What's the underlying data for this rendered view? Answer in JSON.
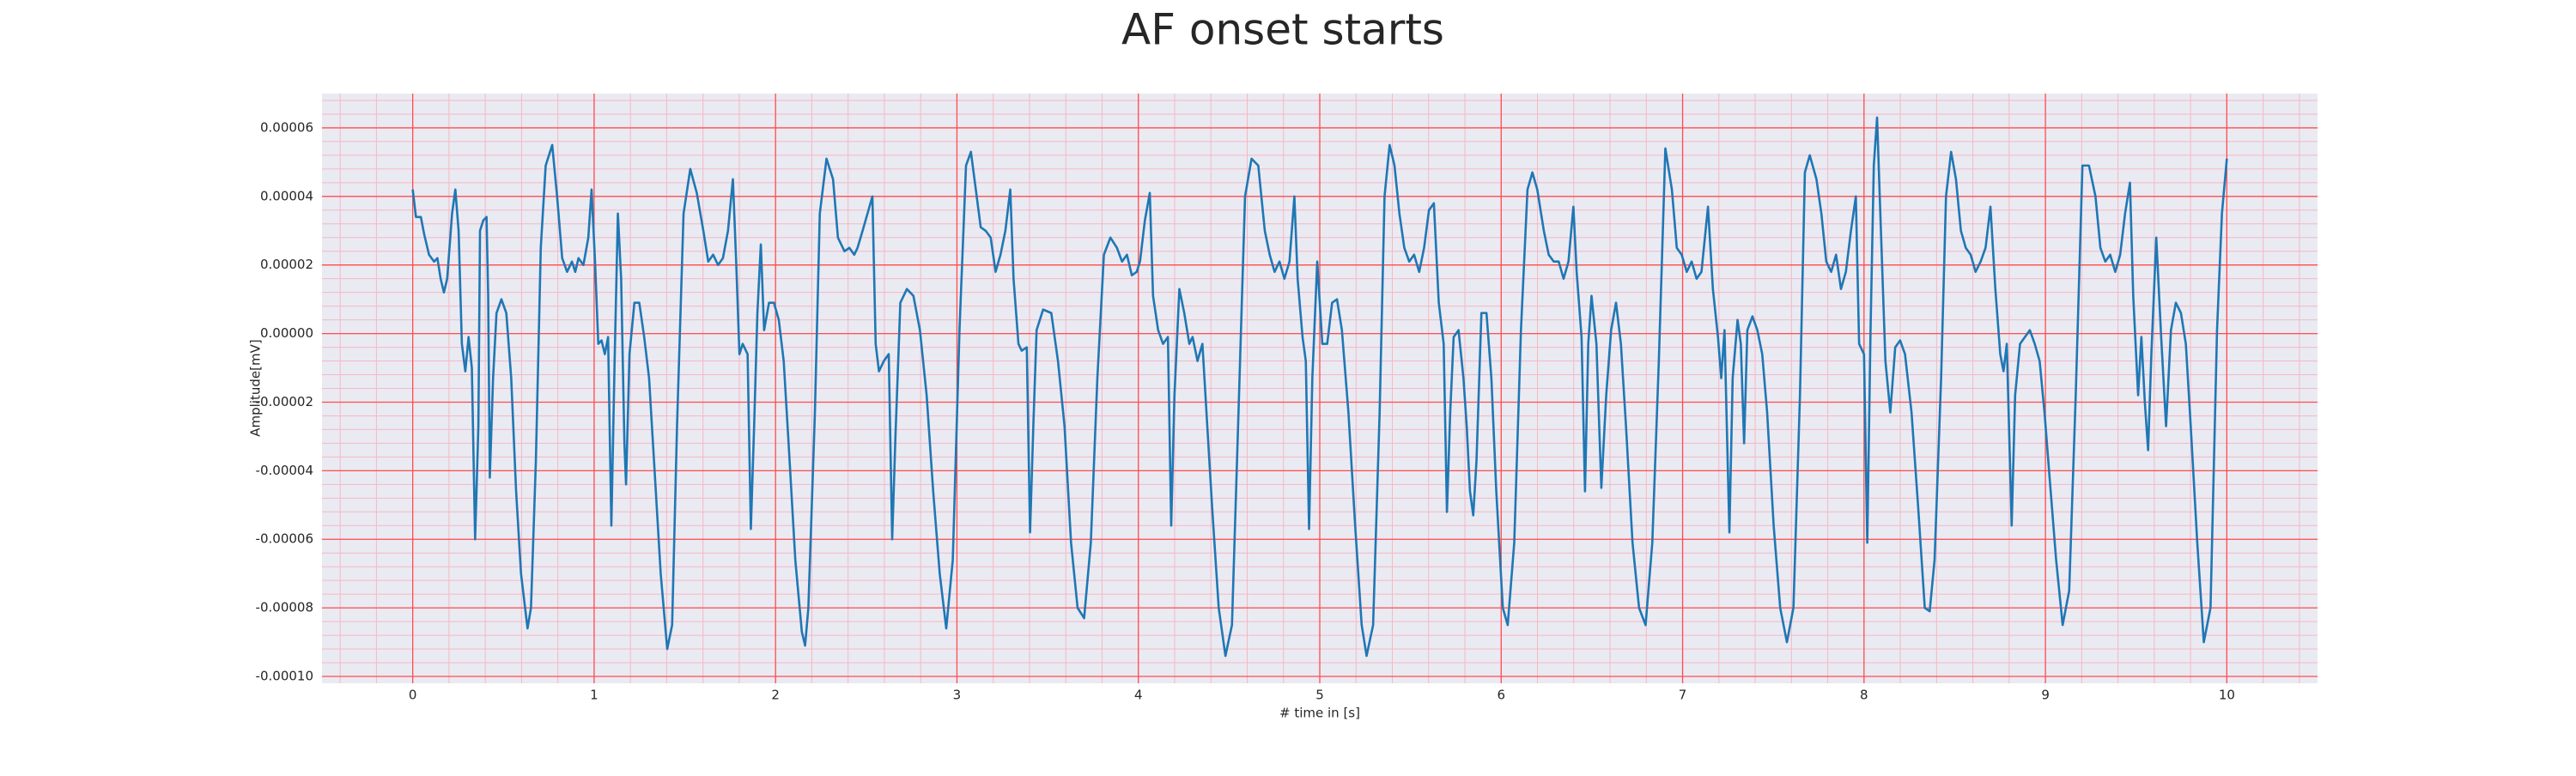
{
  "chart_data": {
    "type": "line",
    "title": "AF onset starts",
    "x_label": "# time in [s]",
    "y_label": "Amplitude[mV]",
    "color": "#1f77b4",
    "grid": true,
    "major_grid_color": "#ff4d4d",
    "minor_grid_color": "#f4b8c4",
    "background": "#eaeaf2",
    "xlim": [
      -0.5,
      10.5
    ],
    "xticks": [
      0,
      1,
      2,
      3,
      4,
      5,
      6,
      7,
      8,
      9,
      10
    ],
    "ylim": [
      -0.000102,
      7e-05
    ],
    "yticks": [
      {
        "value": -0.0001,
        "label": "-0.00010"
      },
      -8e-05,
      -6e-05,
      -4e-05,
      -2e-05,
      {
        "value": 0,
        "label": "0.00000"
      },
      2e-05,
      4e-05,
      6e-05
    ],
    "x": [
      0,
      0.018,
      0.045,
      0.063,
      0.09,
      0.118,
      0.136,
      0.154,
      0.172,
      0.19,
      0.217,
      0.235,
      0.253,
      0.271,
      0.29,
      0.308,
      0.326,
      0.344,
      0.362,
      0.371,
      0.389,
      0.407,
      0.416,
      0.425,
      0.443,
      0.462,
      0.489,
      0.516,
      0.543,
      0.57,
      0.597,
      0.633,
      0.652,
      0.679,
      0.706,
      0.733,
      0.769,
      0.796,
      0.824,
      0.851,
      0.878,
      0.896,
      0.914,
      0.941,
      0.968,
      0.986,
      1.005,
      1.023,
      1.041,
      1.059,
      1.077,
      1.095,
      1.113,
      1.131,
      1.149,
      1.167,
      1.176,
      1.195,
      1.222,
      1.249,
      1.276,
      1.303,
      1.33,
      1.367,
      1.403,
      1.43,
      1.457,
      1.493,
      1.53,
      1.566,
      1.602,
      1.629,
      1.656,
      1.683,
      1.71,
      1.738,
      1.765,
      1.783,
      1.801,
      1.819,
      1.846,
      1.864,
      1.882,
      1.9,
      1.919,
      1.937,
      1.964,
      1.991,
      2.018,
      2.045,
      2.072,
      2.109,
      2.145,
      2.163,
      2.181,
      2.217,
      2.244,
      2.281,
      2.317,
      2.344,
      2.38,
      2.407,
      2.434,
      2.452,
      2.48,
      2.507,
      2.534,
      2.552,
      2.57,
      2.597,
      2.624,
      2.643,
      2.661,
      2.688,
      2.724,
      2.76,
      2.796,
      2.833,
      2.869,
      2.905,
      2.941,
      2.977,
      3.014,
      3.05,
      3.077,
      3.104,
      3.131,
      3.158,
      3.186,
      3.213,
      3.24,
      3.267,
      3.294,
      3.312,
      3.339,
      3.357,
      3.385,
      3.403,
      3.421,
      3.439,
      3.475,
      3.52,
      3.557,
      3.593,
      3.629,
      3.665,
      3.701,
      3.738,
      3.774,
      3.81,
      3.846,
      3.882,
      3.91,
      3.937,
      3.964,
      3.991,
      4.009,
      4.036,
      4.063,
      4.081,
      4.109,
      4.136,
      4.163,
      4.181,
      4.199,
      4.226,
      4.253,
      4.281,
      4.299,
      4.326,
      4.353,
      4.38,
      4.407,
      4.443,
      4.48,
      4.516,
      4.552,
      4.588,
      4.624,
      4.661,
      4.697,
      4.724,
      4.751,
      4.778,
      4.805,
      4.833,
      4.86,
      4.878,
      4.905,
      4.923,
      4.941,
      4.959,
      4.986,
      5.014,
      5.041,
      5.068,
      5.095,
      5.122,
      5.158,
      5.195,
      5.231,
      5.258,
      5.294,
      5.33,
      5.357,
      5.385,
      5.412,
      5.439,
      5.466,
      5.493,
      5.52,
      5.548,
      5.575,
      5.602,
      5.629,
      5.656,
      5.683,
      5.701,
      5.719,
      5.738,
      5.765,
      5.792,
      5.81,
      5.828,
      5.846,
      5.864,
      5.891,
      5.919,
      5.946,
      5.973,
      6.009,
      6.036,
      6.072,
      6.109,
      6.145,
      6.172,
      6.199,
      6.235,
      6.262,
      6.29,
      6.317,
      6.344,
      6.371,
      6.398,
      6.416,
      6.443,
      6.462,
      6.48,
      6.498,
      6.525,
      6.552,
      6.579,
      6.606,
      6.633,
      6.66,
      6.688,
      6.724,
      6.76,
      6.796,
      6.833,
      6.869,
      6.905,
      6.941,
      6.968,
      6.995,
      7.023,
      7.05,
      7.077,
      7.104,
      7.14,
      7.167,
      7.195,
      7.213,
      7.231,
      7.258,
      7.276,
      7.303,
      7.321,
      7.339,
      7.357,
      7.385,
      7.412,
      7.439,
      7.466,
      7.502,
      7.538,
      7.575,
      7.611,
      7.647,
      7.674,
      7.701,
      7.738,
      7.765,
      7.792,
      7.819,
      7.846,
      7.873,
      7.9,
      7.928,
      7.955,
      7.973,
      8.0,
      8.018,
      8.036,
      8.054,
      8.072,
      8.09,
      8.118,
      8.145,
      8.172,
      8.199,
      8.226,
      8.262,
      8.299,
      8.335,
      8.362,
      8.389,
      8.425,
      8.452,
      8.48,
      8.507,
      8.534,
      8.561,
      8.588,
      8.615,
      8.643,
      8.67,
      8.697,
      8.724,
      8.751,
      8.769,
      8.787,
      8.814,
      8.833,
      8.86,
      8.887,
      8.914,
      8.941,
      8.968,
      8.995,
      9.023,
      9.059,
      9.095,
      9.131,
      9.167,
      9.204,
      9.24,
      9.276,
      9.303,
      9.33,
      9.357,
      9.385,
      9.412,
      9.439,
      9.466,
      9.484,
      9.511,
      9.529,
      9.548,
      9.566,
      9.584,
      9.611,
      9.638,
      9.665,
      9.692,
      9.719,
      9.747,
      9.774,
      9.801,
      9.837,
      9.873,
      9.91,
      9.946,
      9.973,
      10.0
    ],
    "values": [
      4.2e-05,
      3.4e-05,
      3.4e-05,
      2.9e-05,
      2.3e-05,
      2.1e-05,
      2.2e-05,
      1.6e-05,
      1.2e-05,
      1.6e-05,
      3.5e-05,
      4.2e-05,
      3e-05,
      -3e-06,
      -1.1e-05,
      -1e-06,
      -1e-05,
      -6e-05,
      -2.7e-05,
      3e-05,
      3.3e-05,
      3.4e-05,
      1.1e-05,
      -4.2e-05,
      -1.3e-05,
      6e-06,
      1e-05,
      6e-06,
      -1.3e-05,
      -4.6e-05,
      -7e-05,
      -8.6e-05,
      -8e-05,
      -3.7e-05,
      2.5e-05,
      4.9e-05,
      5.5e-05,
      4e-05,
      2.2e-05,
      1.8e-05,
      2.1e-05,
      1.8e-05,
      2.2e-05,
      2e-05,
      2.8e-05,
      4.2e-05,
      2.1e-05,
      -3e-06,
      -2e-06,
      -6e-06,
      -1e-06,
      -5.6e-05,
      -8e-06,
      3.5e-05,
      1.6e-05,
      -3.2e-05,
      -4.4e-05,
      -6e-06,
      9e-06,
      9e-06,
      -1e-06,
      -1.3e-05,
      -3.7e-05,
      -7e-05,
      -9.2e-05,
      -8.5e-05,
      -2.7e-05,
      3.5e-05,
      4.8e-05,
      4.1e-05,
      3e-05,
      2.1e-05,
      2.3e-05,
      2e-05,
      2.2e-05,
      3e-05,
      4.5e-05,
      2.1e-05,
      -6e-06,
      -3e-06,
      -6e-06,
      -5.7e-05,
      -2.7e-05,
      6e-06,
      2.6e-05,
      1e-06,
      9e-06,
      9e-06,
      4e-06,
      -8e-06,
      -3.2e-05,
      -6.6e-05,
      -8.7e-05,
      -9.1e-05,
      -8e-05,
      -2.3e-05,
      3.5e-05,
      5.1e-05,
      4.5e-05,
      2.8e-05,
      2.4e-05,
      2.5e-05,
      2.3e-05,
      2.5e-05,
      3e-05,
      3.5e-05,
      4e-05,
      -3e-06,
      -1.1e-05,
      -8e-06,
      -6e-06,
      -6e-05,
      -3e-05,
      9e-06,
      1.3e-05,
      1.1e-05,
      1e-06,
      -1.8e-05,
      -4.6e-05,
      -7e-05,
      -8.6e-05,
      -6.6e-05,
      1e-06,
      4.9e-05,
      5.3e-05,
      4.2e-05,
      3.1e-05,
      3e-05,
      2.8e-05,
      1.8e-05,
      2.3e-05,
      3e-05,
      4.2e-05,
      1.6e-05,
      -3e-06,
      -5e-06,
      -4e-06,
      -5.8e-05,
      -2.7e-05,
      1e-06,
      7e-06,
      6e-06,
      -8e-06,
      -2.7e-05,
      -6.1e-05,
      -8e-05,
      -8.3e-05,
      -6.1e-05,
      -1.3e-05,
      2.3e-05,
      2.8e-05,
      2.5e-05,
      2.1e-05,
      2.3e-05,
      1.7e-05,
      1.8e-05,
      2.1e-05,
      3.3e-05,
      4.1e-05,
      1.1e-05,
      1e-06,
      -3e-06,
      -1e-06,
      -5.6e-05,
      -1.8e-05,
      1.3e-05,
      6e-06,
      -3e-06,
      -1e-06,
      -8e-06,
      -3e-06,
      -2.7e-05,
      -5.1e-05,
      -8e-05,
      -9.4e-05,
      -8.5e-05,
      -2.3e-05,
      4e-05,
      5.1e-05,
      4.9e-05,
      3e-05,
      2.3e-05,
      1.8e-05,
      2.1e-05,
      1.6e-05,
      2.1e-05,
      4e-05,
      1.6e-05,
      -1e-06,
      -8e-06,
      -5.7e-05,
      -1.3e-05,
      2.1e-05,
      -3e-06,
      -3e-06,
      9e-06,
      1e-05,
      1e-06,
      -2.3e-05,
      -5.6e-05,
      -8.5e-05,
      -9.4e-05,
      -8.5e-05,
      -2.3e-05,
      4e-05,
      5.5e-05,
      4.9e-05,
      3.5e-05,
      2.5e-05,
      2.1e-05,
      2.3e-05,
      1.8e-05,
      2.5e-05,
      3.6e-05,
      3.8e-05,
      9e-06,
      -3e-06,
      -5.2e-05,
      -2.3e-05,
      -1e-06,
      1e-06,
      -1.3e-05,
      -2.7e-05,
      -4.6e-05,
      -5.3e-05,
      -3.7e-05,
      6e-06,
      6e-06,
      -1.3e-05,
      -4.6e-05,
      -8e-05,
      -8.5e-05,
      -6.1e-05,
      1e-06,
      4.2e-05,
      4.7e-05,
      4.2e-05,
      3e-05,
      2.3e-05,
      2.1e-05,
      2.1e-05,
      1.6e-05,
      2.1e-05,
      3.7e-05,
      1.8e-05,
      -1e-06,
      -4.6e-05,
      -3e-06,
      1.1e-05,
      -3e-06,
      -4.5e-05,
      -1.8e-05,
      1e-06,
      9e-06,
      -3e-06,
      -2.7e-05,
      -6.1e-05,
      -8e-05,
      -8.5e-05,
      -6.1e-05,
      -8e-06,
      5.4e-05,
      4.2e-05,
      2.5e-05,
      2.3e-05,
      1.8e-05,
      2.1e-05,
      1.6e-05,
      1.8e-05,
      3.7e-05,
      1.3e-05,
      -1e-06,
      -1.3e-05,
      1e-06,
      -5.8e-05,
      -1.3e-05,
      4e-06,
      -3e-06,
      -3.2e-05,
      1e-06,
      5e-06,
      1e-06,
      -6e-06,
      -2.3e-05,
      -5.6e-05,
      -8e-05,
      -9e-05,
      -8e-05,
      -1.8e-05,
      4.7e-05,
      5.2e-05,
      4.5e-05,
      3.5e-05,
      2.1e-05,
      1.8e-05,
      2.3e-05,
      1.3e-05,
      1.8e-05,
      3e-05,
      4e-05,
      -3e-06,
      -6e-06,
      -6.1e-05,
      1e-06,
      4.9e-05,
      6.3e-05,
      3.5e-05,
      -8e-06,
      -2.3e-05,
      -4e-06,
      -2e-06,
      -6e-06,
      -2.3e-05,
      -5.1e-05,
      -8e-05,
      -8.1e-05,
      -6.6e-05,
      -1.3e-05,
      4e-05,
      5.3e-05,
      4.5e-05,
      3e-05,
      2.5e-05,
      2.3e-05,
      1.8e-05,
      2.1e-05,
      2.5e-05,
      3.7e-05,
      1.3e-05,
      -6e-06,
      -1.1e-05,
      -3e-06,
      -5.6e-05,
      -1.8e-05,
      -3e-06,
      -1e-06,
      1e-06,
      -3e-06,
      -8e-06,
      -2.3e-05,
      -4.2e-05,
      -6.6e-05,
      -8.5e-05,
      -7.5e-05,
      -1.8e-05,
      4.9e-05,
      4.9e-05,
      4e-05,
      2.5e-05,
      2.1e-05,
      2.3e-05,
      1.8e-05,
      2.3e-05,
      3.5e-05,
      4.4e-05,
      1.1e-05,
      -1.8e-05,
      -1e-06,
      -2e-05,
      -3.4e-05,
      -6e-06,
      2.8e-05,
      -1e-06,
      -2.7e-05,
      1e-06,
      9e-06,
      6e-06,
      -3e-06,
      -2.7e-05,
      -6.1e-05,
      -9e-05,
      -8e-05,
      1e-06,
      3.5e-05,
      5.1e-05
    ]
  }
}
